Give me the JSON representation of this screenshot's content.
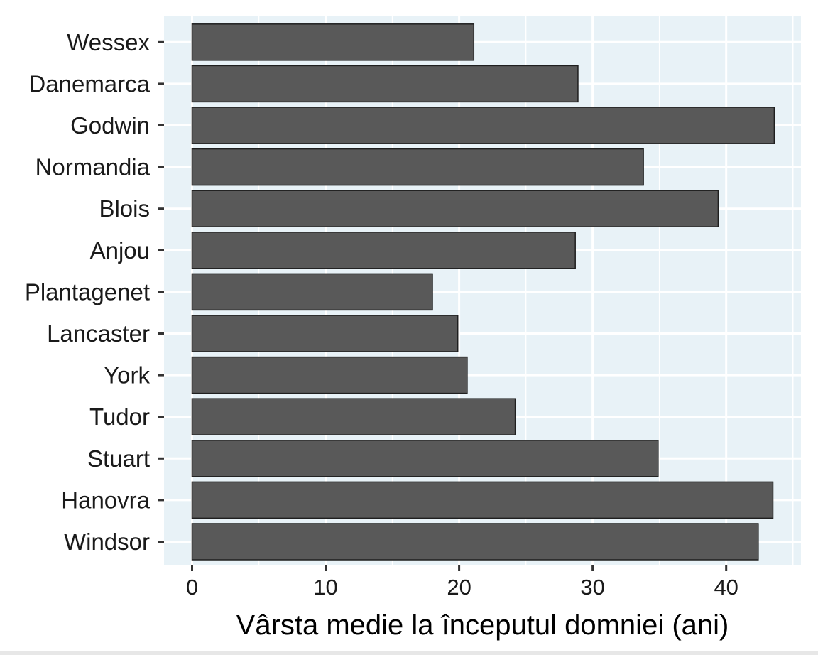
{
  "chart_data": {
    "type": "bar",
    "orientation": "horizontal",
    "categories": [
      "Wessex",
      "Danemarca",
      "Godwin",
      "Normandia",
      "Blois",
      "Anjou",
      "Plantagenet",
      "Lancaster",
      "York",
      "Tudor",
      "Stuart",
      "Hanovra",
      "Windsor"
    ],
    "values": [
      21.1,
      28.9,
      43.6,
      33.8,
      39.4,
      28.7,
      18.0,
      19.9,
      20.6,
      24.2,
      34.9,
      43.5,
      42.4
    ],
    "title": "",
    "xlabel": "Vârsta medie la începutul domniei (ani)",
    "ylabel": "",
    "xlim": [
      -2.1,
      45.6
    ],
    "xticks": [
      0,
      10,
      20,
      30,
      40
    ],
    "grid": true,
    "colors": {
      "bar_fill": "#595959",
      "bar_stroke": "#1f1f1f",
      "panel_background": "#e8f2f7",
      "grid_line": "#ffffff"
    }
  }
}
